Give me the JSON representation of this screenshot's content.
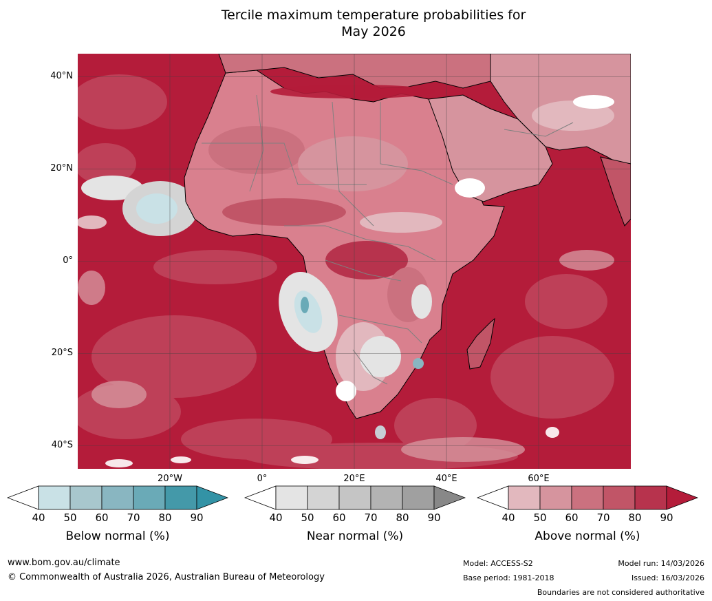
{
  "title_line1": "Tercile maximum temperature probabilities for",
  "title_line2": "May 2026",
  "map": {
    "lat_labels": [
      "40°N",
      "20°N",
      "0°",
      "20°S",
      "40°S"
    ],
    "lat_values": [
      40,
      20,
      0,
      -20,
      -40
    ],
    "lon_labels": [
      "20°W",
      "0°",
      "20°E",
      "40°E",
      "60°E"
    ],
    "lon_values": [
      -20,
      0,
      20,
      40,
      60
    ],
    "lon_range": [
      -40,
      80
    ],
    "lat_range": [
      -45,
      45
    ],
    "ocean_color": "#b41c3a",
    "land_color": "#d9808e",
    "coastline_color": "#000000",
    "border_color": "#808080",
    "grid_color": "#404040"
  },
  "colorbars": [
    {
      "name": "below",
      "title": "Below normal (%)",
      "ticks": [
        "40",
        "50",
        "60",
        "70",
        "80",
        "90"
      ],
      "colors": [
        "#ffffff",
        "#c9e1e6",
        "#a8c7cd",
        "#89b6c1",
        "#6aaab7",
        "#4499a9",
        "#3393a6"
      ]
    },
    {
      "name": "near",
      "title": "Near normal (%)",
      "ticks": [
        "40",
        "50",
        "60",
        "70",
        "80",
        "90"
      ],
      "colors": [
        "#ffffff",
        "#e4e4e4",
        "#d4d4d4",
        "#c5c5c5",
        "#b3b3b3",
        "#a0a0a0",
        "#888888"
      ]
    },
    {
      "name": "above",
      "title": "Above normal (%)",
      "ticks": [
        "40",
        "50",
        "60",
        "70",
        "80",
        "90"
      ],
      "colors": [
        "#ffffff",
        "#e2b8be",
        "#d6949e",
        "#cb717f",
        "#c15567",
        "#b7334d",
        "#b41c3a"
      ]
    }
  ],
  "footer": {
    "website": "www.bom.gov.au/climate",
    "copyright": "© Commonwealth of Australia 2026, Australian Bureau of Meteorology",
    "model": "Model: ACCESS-S2",
    "base_period": "Base period: 1981-2018",
    "model_run": "Model run: 14/03/2026",
    "issued": "Issued: 16/03/2026",
    "disclaimer": "Boundaries are not considered authoritative"
  }
}
